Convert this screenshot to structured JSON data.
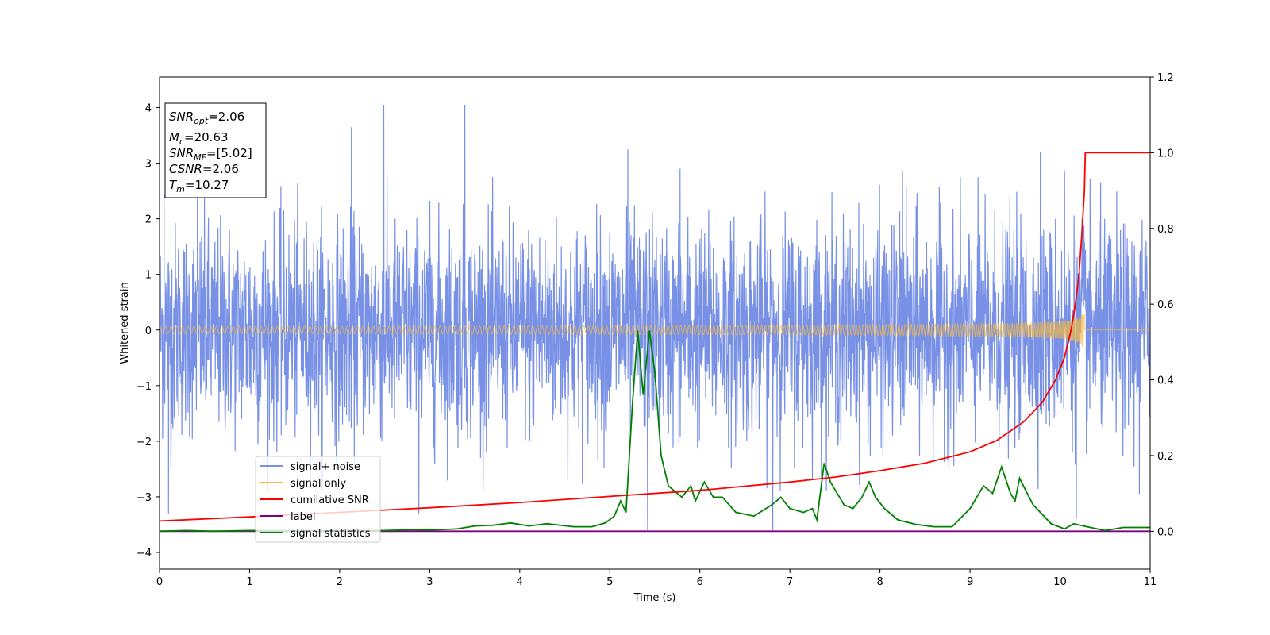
{
  "chart_data": {
    "type": "line",
    "title": "",
    "xlabel": "Time (s)",
    "ylabel": "Whitened strain",
    "xlim": [
      0,
      11
    ],
    "ylim_left": [
      -4.3,
      4.55
    ],
    "ylim_right": [
      -0.1,
      1.2
    ],
    "x_ticks": [
      "0",
      "1",
      "2",
      "3",
      "4",
      "5",
      "6",
      "7",
      "8",
      "9",
      "10",
      "11"
    ],
    "y_ticks_left": [
      "−4",
      "−3",
      "−2",
      "−1",
      "0",
      "1",
      "2",
      "3",
      "4"
    ],
    "y_ticks_right": [
      "0.0",
      "0.2",
      "0.4",
      "0.6",
      "0.8",
      "1.0",
      "1.2"
    ],
    "grid": false,
    "legend_position": "lower-left",
    "annotation": {
      "snr_opt": "=2.06",
      "mc": "=20.63",
      "snr_mf": "=[5.02]",
      "csnr": "=2.06",
      "tm": "=10.27"
    },
    "series": [
      {
        "name": "signal+ noise",
        "axis": "left",
        "color": "#7891e6",
        "description": "dense whitened strain noise, roughly within -2.5..2.5 with spikes up to 4.05",
        "spikes_up": [
          [
            0.05,
            2.45
          ],
          [
            0.42,
            2.65
          ],
          [
            2.13,
            3.65
          ],
          [
            2.49,
            4.05
          ],
          [
            3.39,
            4.05
          ],
          [
            5.2,
            3.25
          ],
          [
            5.78,
            2.9
          ],
          [
            8.25,
            2.85
          ],
          [
            9.78,
            3.2
          ],
          [
            10.05,
            2.85
          ]
        ],
        "spikes_down": [
          [
            0.1,
            -3.3
          ],
          [
            2.88,
            -3.3
          ],
          [
            5.42,
            -3.6
          ],
          [
            6.81,
            -3.6
          ],
          [
            10.18,
            -3.4
          ],
          [
            10.88,
            -2.95
          ]
        ]
      },
      {
        "name": "signal only",
        "axis": "left",
        "color": "#f5b942",
        "description": "chirp near zero, growing amplitude up to about 0.4 before merger at 10.27 s",
        "merger_time": 10.27,
        "peak_amplitude": 0.38
      },
      {
        "name": "cumilative SNR",
        "axis": "right",
        "color": "#ff0000",
        "x": [
          0,
          1,
          2,
          3,
          4,
          5,
          6,
          7,
          7.5,
          8,
          8.5,
          9,
          9.3,
          9.6,
          9.8,
          9.95,
          10.05,
          10.12,
          10.17,
          10.21,
          10.24,
          10.27,
          10.28,
          11
        ],
        "y": [
          0.027,
          0.038,
          0.05,
          0.062,
          0.076,
          0.092,
          0.108,
          0.13,
          0.143,
          0.16,
          0.18,
          0.21,
          0.24,
          0.29,
          0.34,
          0.4,
          0.46,
          0.53,
          0.6,
          0.68,
          0.78,
          0.9,
          1.0,
          1.0
        ]
      },
      {
        "name": "label",
        "axis": "right",
        "color": "#800080",
        "x": [
          0,
          11
        ],
        "y": [
          0.0,
          0.0
        ]
      },
      {
        "name": "signal statistics",
        "axis": "right",
        "color": "#008000",
        "x": [
          0,
          0.3,
          0.6,
          1.0,
          1.5,
          2.0,
          2.5,
          2.8,
          3.0,
          3.3,
          3.5,
          3.7,
          3.9,
          4.1,
          4.3,
          4.6,
          4.8,
          4.95,
          5.05,
          5.12,
          5.18,
          5.25,
          5.31,
          5.37,
          5.44,
          5.5,
          5.57,
          5.65,
          5.8,
          5.9,
          5.95,
          6.05,
          6.15,
          6.25,
          6.4,
          6.6,
          6.8,
          6.9,
          7.0,
          7.15,
          7.25,
          7.3,
          7.38,
          7.45,
          7.6,
          7.7,
          7.8,
          7.88,
          7.95,
          8.05,
          8.2,
          8.4,
          8.6,
          8.8,
          9.0,
          9.15,
          9.25,
          9.35,
          9.45,
          9.5,
          9.55,
          9.7,
          9.9,
          10.05,
          10.15,
          10.3,
          10.5,
          10.7,
          11.0
        ],
        "y": [
          0.0,
          0.002,
          0.0,
          0.002,
          0.001,
          0.002,
          0.002,
          0.004,
          0.003,
          0.006,
          0.014,
          0.016,
          0.022,
          0.014,
          0.02,
          0.012,
          0.012,
          0.022,
          0.04,
          0.08,
          0.05,
          0.33,
          0.53,
          0.36,
          0.53,
          0.42,
          0.2,
          0.12,
          0.09,
          0.12,
          0.08,
          0.13,
          0.09,
          0.09,
          0.05,
          0.04,
          0.07,
          0.09,
          0.06,
          0.05,
          0.06,
          0.03,
          0.18,
          0.13,
          0.07,
          0.06,
          0.09,
          0.13,
          0.09,
          0.06,
          0.03,
          0.018,
          0.012,
          0.012,
          0.06,
          0.12,
          0.1,
          0.17,
          0.1,
          0.08,
          0.14,
          0.07,
          0.02,
          0.006,
          0.02,
          0.012,
          0.002,
          0.01,
          0.01
        ]
      }
    ]
  }
}
